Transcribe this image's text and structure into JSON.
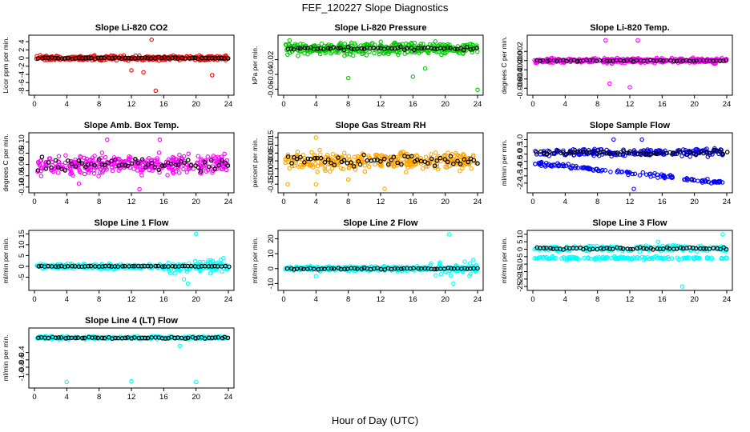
{
  "title": "FEF_120227  Slope Diagnostics",
  "xlabel": "Hour of Day (UTC)",
  "colors": {
    "black": "#000000",
    "red": "#ff0000",
    "green": "#00cc00",
    "magenta": "#ff00ff",
    "orange": "#ffa500",
    "blue": "#0000ff",
    "cyan": "#00ffff"
  },
  "chart_data": [
    {
      "type": "scatter",
      "title": "Slope Li-820 CO2",
      "ylabel": "Licor ppm per min.",
      "color": "#ff0000",
      "xlim": [
        0,
        24
      ],
      "ylim": [
        -8.5,
        5
      ],
      "xticks": [
        0,
        4,
        8,
        12,
        16,
        20,
        24
      ],
      "yticks": [
        -8,
        -6,
        -4,
        -2,
        0,
        2,
        4
      ],
      "band": {
        "center": 0,
        "spread": 0.8
      },
      "ref_spread": 0.3,
      "outliers": [
        [
          15,
          -8
        ],
        [
          22,
          -4.2
        ],
        [
          14.5,
          4.5
        ],
        [
          12,
          -3
        ],
        [
          13.5,
          -3.5
        ]
      ]
    },
    {
      "type": "scatter",
      "title": "Slope Li-820 Pressure",
      "ylabel": "kPa per min.",
      "color": "#00cc00",
      "xlim": [
        0,
        24
      ],
      "ylim": [
        -0.065,
        0.01
      ],
      "xticks": [
        0,
        4,
        8,
        12,
        16,
        20,
        24
      ],
      "yticks": [
        -0.06,
        -0.04,
        -0.02
      ],
      "band": {
        "center": -0.005,
        "spread": 0.012
      },
      "ref_spread": 0.003,
      "outliers": [
        [
          8,
          -0.045
        ],
        [
          16,
          -0.043
        ],
        [
          24,
          -0.061
        ],
        [
          17.5,
          -0.032
        ]
      ]
    },
    {
      "type": "scatter",
      "title": "Slope Li-820 Temp.",
      "ylabel": "degrees C per min.",
      "color": "#ff00ff",
      "xlim": [
        0,
        24
      ],
      "ylim": [
        -0.007,
        0.005
      ],
      "xticks": [
        0,
        4,
        8,
        12,
        16,
        20,
        24
      ],
      "yticks": [
        -0.006,
        -0.004,
        -0.002,
        0.0,
        0.002
      ],
      "band": {
        "center": 0,
        "spread": 0.0008
      },
      "ref_spread": 0.0002,
      "outliers": [
        [
          9,
          0.0044
        ],
        [
          13,
          0.0044
        ],
        [
          12,
          -0.0058
        ],
        [
          9.5,
          -0.005
        ]
      ]
    },
    {
      "type": "scatter",
      "title": "Slope Amb. Box Temp.",
      "ylabel": "degrees C per min.",
      "color": "#ff00ff",
      "xlim": [
        0,
        24
      ],
      "ylim": [
        -0.115,
        0.13
      ],
      "xticks": [
        0,
        4,
        8,
        12,
        16,
        20,
        24
      ],
      "yticks": [
        -0.1,
        -0.05,
        0.0,
        0.05,
        0.1
      ],
      "band": {
        "center": 0,
        "spread": 0.06
      },
      "ref_spread": 0.04,
      "outliers": [
        [
          13,
          -0.11
        ],
        [
          9,
          0.11
        ],
        [
          15.5,
          0.11
        ],
        [
          5.5,
          -0.085
        ]
      ]
    },
    {
      "type": "scatter",
      "title": "Slope Gas Stream RH",
      "ylabel": "percent per min.",
      "color": "#ffa500",
      "xlim": [
        0,
        24
      ],
      "ylim": [
        -0.19,
        0.165
      ],
      "xticks": [
        0,
        4,
        8,
        12,
        16,
        20,
        24
      ],
      "yticks": [
        -0.15,
        -0.1,
        -0.05,
        0.0,
        0.05,
        0.1,
        0.15
      ],
      "band": {
        "center": 0,
        "spread": 0.08
      },
      "ref_spread": 0.06,
      "outliers": [
        [
          4,
          0.15
        ],
        [
          0.5,
          -0.15
        ],
        [
          12.5,
          -0.18
        ],
        [
          8,
          -0.12
        ],
        [
          4,
          -0.15
        ]
      ]
    },
    {
      "type": "scatter",
      "title": "Slope Sample Flow",
      "ylabel": "ml/min per min.",
      "color": "#0000ff",
      "xlim": [
        0,
        24
      ],
      "ylim": [
        -2.5,
        1.3
      ],
      "xticks": [
        0,
        4,
        8,
        12,
        16,
        20,
        24
      ],
      "yticks": [
        -2.0,
        -1.5,
        -1.0,
        -0.5,
        0.0,
        0.5,
        1.0
      ],
      "band": {
        "center": 0.1,
        "spread": 0.35
      },
      "band2": {
        "start": -0.6,
        "end": -2.0,
        "spread": 0.2
      },
      "ref_spread": 0.25,
      "outliers": [
        [
          12.5,
          -2.4
        ],
        [
          13.5,
          1.0
        ],
        [
          10,
          1.0
        ]
      ]
    },
    {
      "type": "scatter",
      "title": "Slope Line 1 Flow",
      "ylabel": "ml/min per min.",
      "color": "#00ffff",
      "xlim": [
        0,
        24
      ],
      "ylim": [
        -10,
        15.5
      ],
      "xticks": [
        0,
        4,
        8,
        12,
        16,
        20,
        24
      ],
      "yticks": [
        -5,
        0,
        5,
        10,
        15
      ],
      "band": {
        "center": 0,
        "spread": 1.5
      },
      "burst": {
        "from": 16.5,
        "to": 24,
        "spread": 5
      },
      "ref_spread": 0.3,
      "outliers": [
        [
          20,
          15
        ],
        [
          19,
          -8
        ],
        [
          18.5,
          -6
        ]
      ]
    },
    {
      "type": "scatter",
      "title": "Slope Line 2 Flow",
      "ylabel": "ml/min per min.",
      "color": "#00ffff",
      "xlim": [
        0,
        24
      ],
      "ylim": [
        -13,
        24
      ],
      "xticks": [
        0,
        4,
        8,
        12,
        16,
        20,
        24
      ],
      "yticks": [
        -10,
        0,
        10,
        20
      ],
      "band": {
        "center": 0,
        "spread": 2
      },
      "burst": {
        "from": 18,
        "to": 24,
        "spread": 7
      },
      "ref_spread": 0.8,
      "outliers": [
        [
          20.5,
          23
        ],
        [
          21,
          -10
        ],
        [
          4,
          -5
        ]
      ]
    },
    {
      "type": "scatter",
      "title": "Slope Line 3 Flow",
      "ylabel": "ml/min per min.",
      "color": "#00ffff",
      "xlim": [
        0,
        24
      ],
      "ylim": [
        -26,
        11
      ],
      "xticks": [
        0,
        4,
        8,
        12,
        16,
        20,
        24
      ],
      "yticks": [
        -25,
        -20,
        -15,
        -10,
        -5,
        0,
        5,
        10
      ],
      "band": {
        "center": 0.5,
        "spread": 2.5
      },
      "band2": {
        "start": -6,
        "end": -6,
        "spread": 1.5
      },
      "ref_spread": 1.2,
      "outliers": [
        [
          18.5,
          -25
        ],
        [
          23.5,
          10
        ],
        [
          15.5,
          5
        ]
      ]
    },
    {
      "type": "scatter",
      "title": "Slope Line 4 (LT) Flow",
      "ylabel": "ml/min per min.",
      "color": "#00ffff",
      "xlim": [
        0,
        24
      ],
      "ylim": [
        -1.3,
        0.2
      ],
      "xticks": [
        0,
        4,
        8,
        12,
        16,
        20,
        24
      ],
      "yticks": [
        -1.0,
        -0.8,
        -0.6,
        -0.4
      ],
      "band": {
        "center": 0,
        "spread": 0.05
      },
      "ref_spread": 0.03,
      "outliers": [
        [
          4,
          -1.2
        ],
        [
          12,
          -1.18
        ],
        [
          20,
          -1.2
        ],
        [
          18,
          -0.22
        ]
      ]
    }
  ]
}
